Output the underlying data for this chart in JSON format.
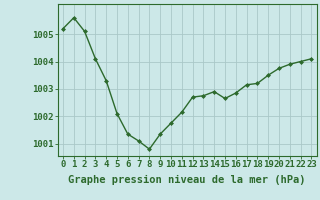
{
  "x": [
    0,
    1,
    2,
    3,
    4,
    5,
    6,
    7,
    8,
    9,
    10,
    11,
    12,
    13,
    14,
    15,
    16,
    17,
    18,
    19,
    20,
    21,
    22,
    23
  ],
  "y": [
    1005.2,
    1005.6,
    1005.1,
    1004.1,
    1003.3,
    1002.1,
    1001.35,
    1001.1,
    1000.8,
    1001.35,
    1001.75,
    1002.15,
    1002.7,
    1002.75,
    1002.9,
    1002.65,
    1002.85,
    1003.15,
    1003.2,
    1003.5,
    1003.75,
    1003.9,
    1004.0,
    1004.1
  ],
  "line_color": "#2d6a2d",
  "marker": "D",
  "marker_size": 2.0,
  "bg_color": "#cce8e8",
  "grid_color": "#aac8c8",
  "xlabel": "Graphe pression niveau de la mer (hPa)",
  "xlabel_fontsize": 7.5,
  "ylim": [
    1000.55,
    1006.1
  ],
  "ytick_values": [
    1001,
    1002,
    1003,
    1004,
    1005
  ],
  "ytick_labels": [
    "1001",
    "1002",
    "1003",
    "1004",
    "1005"
  ],
  "xtick_labels": [
    "0",
    "1",
    "2",
    "3",
    "4",
    "5",
    "6",
    "7",
    "8",
    "9",
    "10",
    "11",
    "12",
    "13",
    "14",
    "15",
    "16",
    "17",
    "18",
    "19",
    "20",
    "21",
    "22",
    "23"
  ],
  "tick_fontsize": 6.5,
  "axis_color": "#2d6a2d",
  "spine_color": "#2d6a2d",
  "linewidth": 1.0
}
